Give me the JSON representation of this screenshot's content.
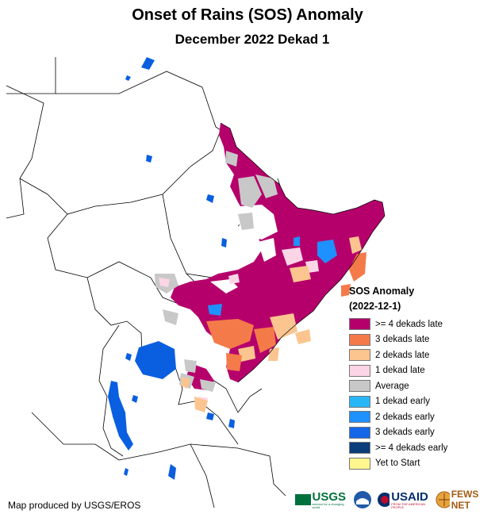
{
  "title": "Onset of Rains (SOS) Anomaly",
  "subtitle": "December 2022 Dekad 1",
  "legend": {
    "heading": "SOS Anomaly",
    "date": "(2022-12-1)",
    "items": [
      {
        "label": ">= 4 dekads late",
        "color": "#b5006b"
      },
      {
        "label": "3 dekads late",
        "color": "#f47a4a"
      },
      {
        "label": "2 dekads late",
        "color": "#fcc58f"
      },
      {
        "label": "1 dekad late",
        "color": "#fbd5e6"
      },
      {
        "label": "Average",
        "color": "#c8c8c8"
      },
      {
        "label": "1 dekad early",
        "color": "#29b6f6"
      },
      {
        "label": "2 dekads early",
        "color": "#1e90ff"
      },
      {
        "label": "3 dekads early",
        "color": "#1565e8"
      },
      {
        "label": ">= 4 dekads early",
        "color": "#0b3d7a"
      },
      {
        "label": "Yet to Start",
        "color": "#fff68f"
      }
    ]
  },
  "credit": "Map produced by USGS/EROS",
  "logos": {
    "usgs": "USGS",
    "usgs_tag": "science for a changing world",
    "usaid": "USAID",
    "usaid_tag": "FROM THE AMERICAN PEOPLE",
    "fewsnet": "FEWS NET"
  },
  "colors": {
    "water": "#0a5fe0",
    "border": "#000000"
  }
}
